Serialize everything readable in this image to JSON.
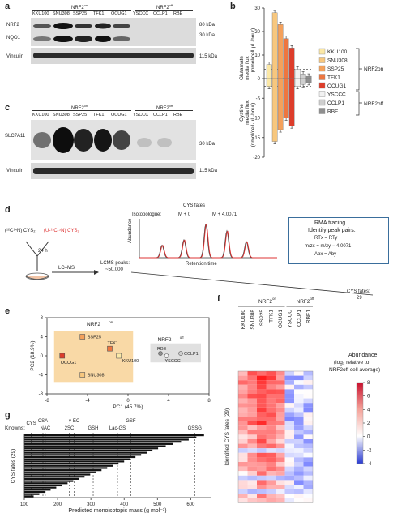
{
  "panels": {
    "a": "a",
    "b": "b",
    "c": "c",
    "d": "d",
    "e": "e",
    "f": "f",
    "g": "g"
  },
  "colors": {
    "KKU100": "#fbe8a6",
    "SNU308": "#f7c77e",
    "SSP25": "#f4a15c",
    "TFK1": "#ee7640",
    "OCUG1": "#dd3d2b",
    "YSCCC": "#f2f2f2",
    "CCLP1": "#cfcfcf",
    "RBE": "#8f8f8f",
    "orange_box": "#f9d9a6",
    "grey_box": "#e0e0e0"
  },
  "panel_a": {
    "group_on": "NRF2on",
    "group_off": "NRF2off",
    "lanes": [
      "KKU100",
      "SNU308",
      "SSP25",
      "TFK1",
      "OCUG1",
      "YSCCC",
      "CCLP1",
      "RBE"
    ],
    "rows": [
      "NRF2",
      "NQO1",
      "Vinculin"
    ],
    "markers": [
      "80 kDa",
      "30 kDa",
      "115 kDa"
    ]
  },
  "panel_c": {
    "group_on": "NRF2on",
    "group_off": "NRF2off",
    "lanes": [
      "KKU100",
      "SNU308",
      "SSP25",
      "TFK1",
      "OCUG1",
      "YSCCC",
      "CCLP1",
      "RBE"
    ],
    "rows": [
      "SLC7A11",
      "Vinculin"
    ],
    "markers": [
      "30 kDa",
      "115 kDa"
    ]
  },
  "panel_b": {
    "chart_data": {
      "type": "bar",
      "categories": [
        "KKU100",
        "SNU308",
        "SSP25",
        "TFK1",
        "OCUG1",
        "YSCCC",
        "CCLP1",
        "RBE"
      ],
      "series": [
        {
          "name": "Glutamate media flux",
          "values": [
            6,
            28,
            23,
            17,
            13,
            4,
            2,
            1
          ]
        },
        {
          "name": "Cystine media flux",
          "values": [
            -2,
            -16,
            -13,
            -10,
            -12,
            -2,
            -1.5,
            -1
          ]
        }
      ],
      "ylabel_top": "Glutamate media flux (nmol/cell·μL·hour)",
      "ylabel_bottom": "Cystine media flux (nmol/cell·μL·hour)",
      "yticks_top": [
        "30",
        "20",
        "10",
        "0"
      ],
      "yticks_bottom": [
        "0",
        "-5",
        "-10",
        "-15",
        "-20"
      ],
      "ylim": [
        -20,
        30
      ]
    },
    "legend": [
      "KKU100",
      "SNU308",
      "SSP25",
      "TFK1",
      "OCUG1",
      "YSCCC",
      "CCLP1",
      "RBE"
    ],
    "brace_on": "NRF2on",
    "brace_off": "NRF2off"
  },
  "panel_d": {
    "reactant_left": "(¹²C¹⁴N) CYS₂",
    "reactant_right": "(U-¹³C¹⁵N) CYS₂",
    "time": "24 h",
    "lcms": "LC–MS",
    "peaks_label": "LCMS peaks:",
    "peaks_value": "~50,000",
    "fates_title": "CYS fates",
    "isotopologue_label": "Isotopologue:",
    "iso_a": "M + 0",
    "iso_b": "M + 4.0071",
    "abundance": "Abundance",
    "retention": "Retention time",
    "rma_title": "RMA tracing",
    "rma_sub": "Identify peak pairs:",
    "rma_l1": "RTx = RTy",
    "rma_l2": "m/zx = m/zy − 4.0071",
    "rma_l3": "Abx = Aby",
    "fates_label": "CYS fates:",
    "fates_value": "29"
  },
  "panel_e": {
    "chart_data": {
      "type": "scatter",
      "points": [
        {
          "name": "SSP25",
          "x": -4.5,
          "y": 4
        },
        {
          "name": "TFK1",
          "x": -1.8,
          "y": 1.5
        },
        {
          "name": "KKU100",
          "x": -0.9,
          "y": 0
        },
        {
          "name": "OCUG1",
          "x": -6.5,
          "y": 0
        },
        {
          "name": "SNU308",
          "x": -4.5,
          "y": -4
        },
        {
          "name": "RBE",
          "x": 3.2,
          "y": 0.5
        },
        {
          "name": "YSCCC",
          "x": 3.8,
          "y": 0
        },
        {
          "name": "CCLP1",
          "x": 5.2,
          "y": 0.5
        }
      ],
      "xlabel": "PC1 (45.7%)",
      "ylabel": "PC2 (18.9%)",
      "xticks": [
        "-8",
        "-4",
        "0",
        "4",
        "8"
      ],
      "yticks": [
        "8",
        "4",
        "0",
        "-4",
        "-8"
      ],
      "xlim": [
        -8,
        8
      ],
      "ylim": [
        -8,
        8
      ]
    },
    "group_on": "NRF2on",
    "group_off": "NRF2off"
  },
  "panel_f": {
    "group_on": "NRF2on",
    "group_off": "NRF2off",
    "columns": [
      "KKU100",
      "SNU308",
      "SSP25",
      "TFK1",
      "OCUG1",
      "YSCCC",
      "CCLP1",
      "RBE1"
    ],
    "ylabel": "Identified CYS fates (29)",
    "legend_title": "Abundance (log₂ relative to NRF2off cell average)",
    "legend_ticks": [
      "8",
      "6",
      "4",
      "2",
      "0",
      "-2",
      "-4"
    ]
  },
  "panel_g": {
    "knowns_label": "Knowns:",
    "knowns": [
      "CYS",
      "CSA",
      "NAC",
      "2SC",
      "γ-EC",
      "GSH",
      "Lac-GS",
      "GSF",
      "GSSG"
    ],
    "ylabel": "CYS fates (29)",
    "xlabel": "Predicted monoisotopic mass (g mol⁻¹)",
    "xticks": [
      "100",
      "200",
      "300",
      "400",
      "500",
      "600"
    ]
  }
}
